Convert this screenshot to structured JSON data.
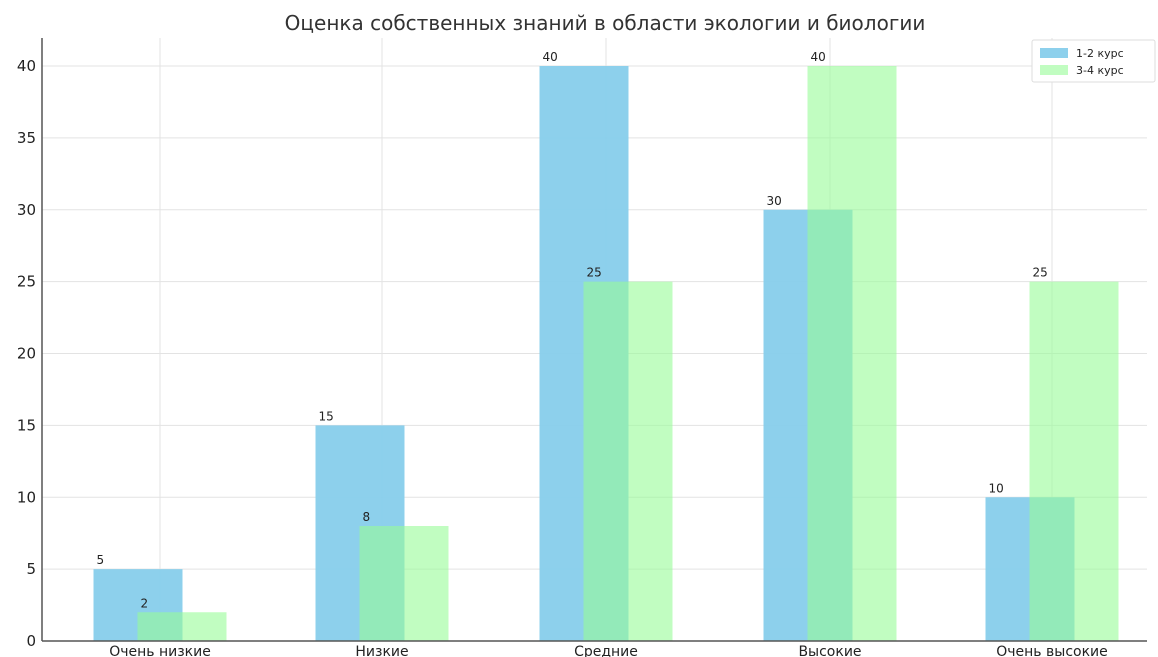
{
  "chart_data": {
    "type": "bar",
    "title": "Оценка собственных знаний в области экологии и биологии",
    "categories": [
      "Очень низкие",
      "Низкие",
      "Средние",
      "Высокие",
      "Очень высокие"
    ],
    "series": [
      {
        "name": "1-2 курс",
        "values": [
          5,
          15,
          40,
          30,
          10
        ],
        "color": "#87ceeb"
      },
      {
        "name": "3-4 курс",
        "values": [
          2,
          8,
          25,
          40,
          25
        ],
        "color": "#98fb98"
      }
    ],
    "ylim": [
      0,
      42
    ],
    "yticks": [
      0,
      5,
      10,
      15,
      20,
      25,
      30,
      35,
      40
    ],
    "grid": true,
    "legend": "top-right",
    "xlabel": "",
    "ylabel": ""
  }
}
